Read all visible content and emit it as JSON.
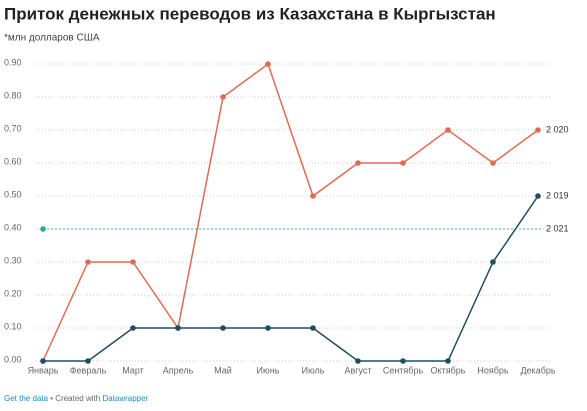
{
  "chart_data": {
    "type": "line",
    "title": "Приток денежных переводов из Казахстана в Кыргызстан",
    "subtitle": "*млн долларов США",
    "categories": [
      "Январь",
      "Февраль",
      "Март",
      "Апрель",
      "Май",
      "Июнь",
      "Июль",
      "Август",
      "Сентябрь",
      "Октябрь",
      "Ноябрь",
      "Декабрь"
    ],
    "series": [
      {
        "name": "2 020",
        "color": "#e06a52",
        "values": [
          0,
          0.3,
          0.3,
          0.1,
          0.8,
          0.9,
          0.5,
          0.6,
          0.6,
          0.7,
          0.6,
          0.7
        ]
      },
      {
        "name": "2 019",
        "color": "#1d4e63",
        "values": [
          0,
          0,
          0.1,
          0.1,
          0.1,
          0.1,
          0.1,
          0,
          0,
          0,
          0.3,
          0.5
        ]
      },
      {
        "name": "2 021",
        "color": "#1fae8e",
        "values": [
          0.4,
          null,
          null,
          null,
          null,
          null,
          null,
          null,
          null,
          null,
          null,
          null
        ]
      }
    ],
    "ylim": [
      0,
      0.9
    ],
    "yticks": [
      {
        "value": 0,
        "label": "0.00"
      },
      {
        "value": 0.1,
        "label": "0.10"
      },
      {
        "value": 0.2,
        "label": "0.20"
      },
      {
        "value": 0.3,
        "label": "0.30"
      },
      {
        "value": 0.4,
        "label": "0.40"
      },
      {
        "value": 0.5,
        "label": "0.50"
      },
      {
        "value": 0.6,
        "label": "0.60"
      },
      {
        "value": 0.7,
        "label": "0.70"
      },
      {
        "value": 0.8,
        "label": "0.80"
      },
      {
        "value": 0.9,
        "label": "0.90"
      }
    ],
    "grid": true
  },
  "footer": {
    "link": "Get the data",
    "credit": "• Created with",
    "tool": "Datawrapper"
  }
}
